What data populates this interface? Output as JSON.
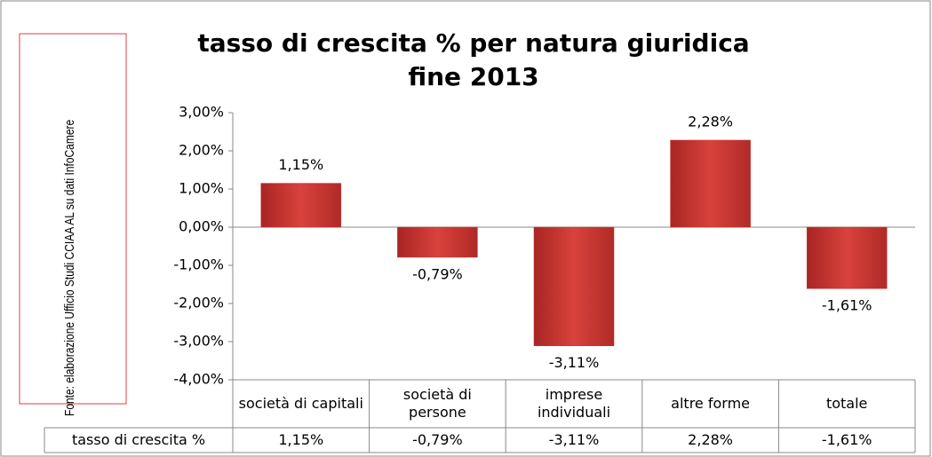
{
  "chart_data": {
    "type": "bar",
    "title": "tasso di crescita % per natura giuridica",
    "subtitle": "fine 2013",
    "source": "Fonte: elaborazione Ufficio Studi CCIAA AL su dati InfoCamere",
    "categories": [
      "società di capitali",
      "società di persone",
      "imprese individuali",
      "altre forme",
      "totale"
    ],
    "series": [
      {
        "name": "tasso di crescita %",
        "color": "#c8332f",
        "values": [
          1.15,
          -0.79,
          -3.11,
          2.28,
          -1.61
        ],
        "value_labels": [
          "1,15%",
          "-0,79%",
          "-3,11%",
          "2,28%",
          "-1,61%"
        ]
      }
    ],
    "ylim": [
      -4,
      3
    ],
    "yticks": [
      {
        "value": 3,
        "label": "3,00%"
      },
      {
        "value": 2,
        "label": "2,00%"
      },
      {
        "value": 1,
        "label": "1,00%"
      },
      {
        "value": 0,
        "label": "0,00%"
      },
      {
        "value": -1,
        "label": "-1,00%"
      },
      {
        "value": -2,
        "label": "-2,00%"
      },
      {
        "value": -3,
        "label": "-3,00%"
      },
      {
        "value": -4,
        "label": "-4,00%"
      }
    ],
    "data_table": true
  }
}
